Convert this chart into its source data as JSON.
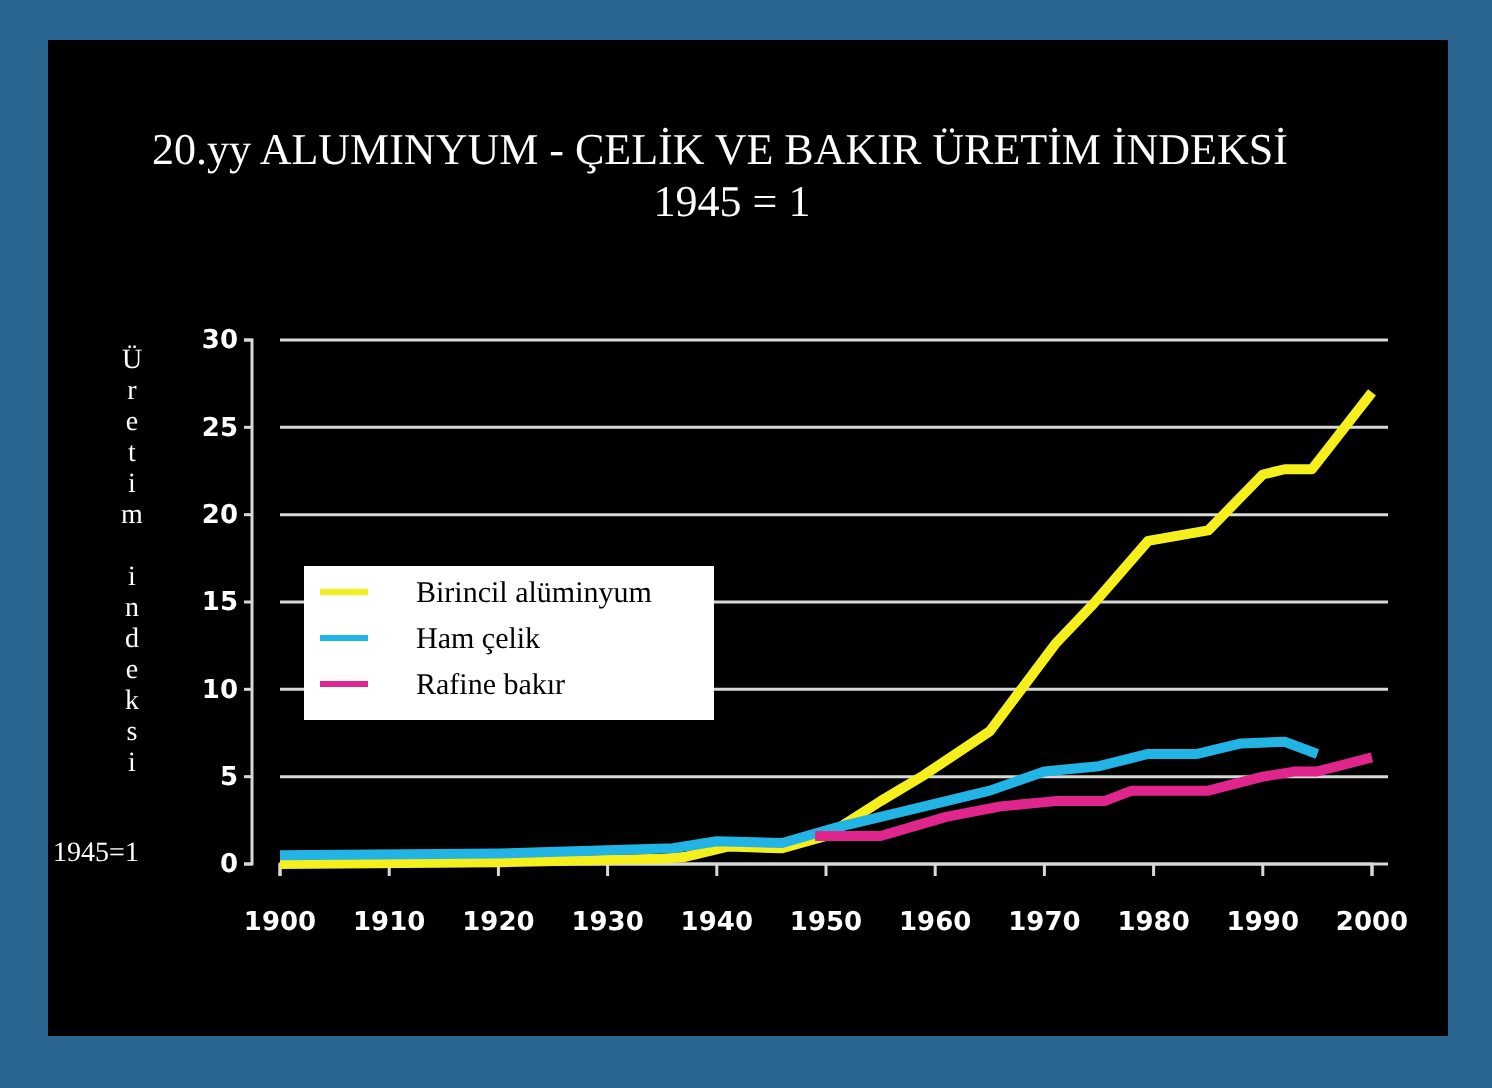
{
  "chart_data": {
    "type": "line",
    "title": "20.yy ALUMINYUM - ÇELİK VE BAKIR ÜRETİM İNDEKSİ",
    "subtitle": "1945 = 1",
    "ylabel": "Üretim indeksi 1945=1",
    "xlim": [
      1900,
      2000
    ],
    "xticks": [
      1900,
      1910,
      1920,
      1930,
      1940,
      1950,
      1960,
      1970,
      1980,
      1990,
      2000
    ],
    "ylim": [
      0,
      30
    ],
    "yticks": [
      0,
      5,
      10,
      15,
      20,
      25,
      30
    ],
    "grid": "y",
    "legend": "left",
    "line_style": "solid",
    "marker": "none",
    "series": [
      {
        "name": "Birincil alüminyum",
        "color": "#f5ef1e",
        "x": [
          1900,
          1920,
          1935,
          1937,
          1941,
          1946,
          1950,
          1955,
          1959,
          1965,
          1971,
          1974.5,
          1979.5,
          1985,
          1990,
          1992,
          1994.5,
          2000
        ],
        "values": [
          0,
          0.1,
          0.3,
          0.4,
          1.0,
          0.9,
          1.6,
          3.6,
          5.1,
          7.6,
          12.6,
          14.9,
          18.5,
          19.1,
          22.3,
          22.6,
          22.6,
          27.0
        ]
      },
      {
        "name": "Ham çelik",
        "color": "#22b4e4",
        "x": [
          1900,
          1920,
          1936,
          1940,
          1946,
          1951,
          1965,
          1970,
          1975,
          1979.5,
          1984,
          1988,
          1992,
          1995
        ],
        "values": [
          0.5,
          0.6,
          0.9,
          1.3,
          1.2,
          2.1,
          4.2,
          5.3,
          5.6,
          6.3,
          6.3,
          6.9,
          7.0,
          6.3
        ]
      },
      {
        "name": "Rafine bakır",
        "color": "#e0268c",
        "x": [
          1949,
          1955,
          1961,
          1966,
          1971,
          1975.5,
          1978,
          1985,
          1990,
          1993,
          1995,
          2000
        ],
        "values": [
          1.6,
          1.6,
          2.7,
          3.3,
          3.6,
          3.6,
          4.2,
          4.2,
          5.0,
          5.3,
          5.3,
          6.1
        ]
      }
    ]
  }
}
